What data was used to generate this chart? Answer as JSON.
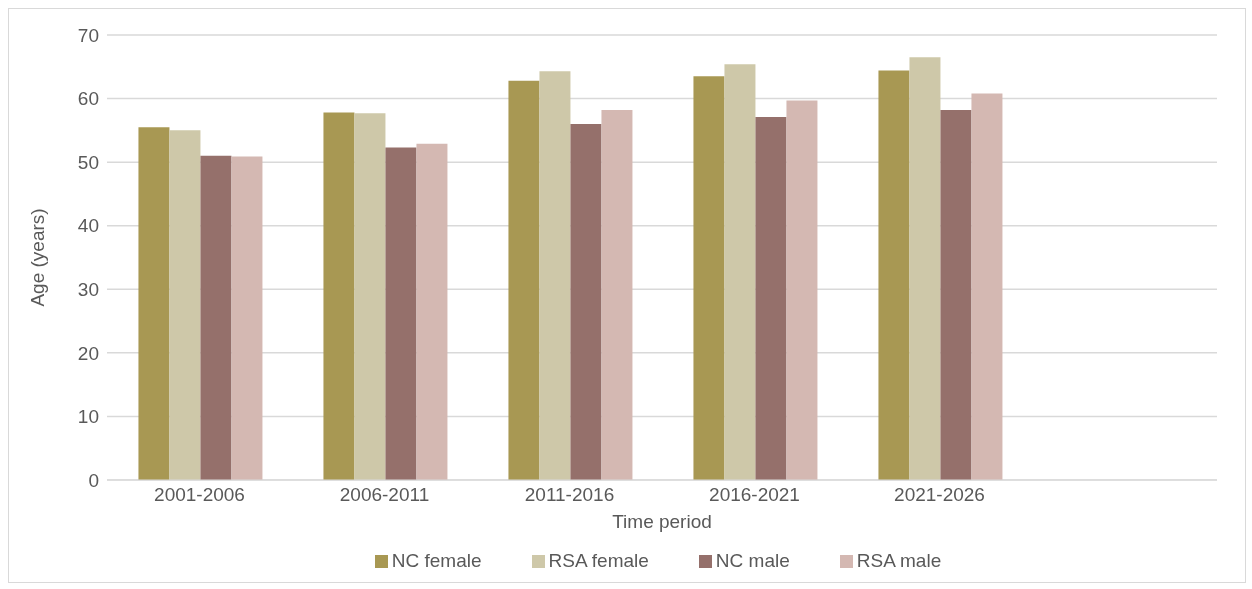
{
  "chart_data": {
    "type": "bar",
    "xlabel": "Time period",
    "ylabel": "Age (years)",
    "categories": [
      "2001-2006",
      "2006-2011",
      "2011-2016",
      "2016-2021",
      "2021-2026",
      null
    ],
    "series": [
      {
        "name": "NC female",
        "color": "#a89853",
        "values": [
          55.5,
          57.8,
          62.8,
          63.5,
          64.4,
          null
        ]
      },
      {
        "name": "RSA female",
        "color": "#cec8a9",
        "values": [
          55.0,
          57.7,
          64.3,
          65.4,
          66.5,
          null
        ]
      },
      {
        "name": "NC male",
        "color": "#95706b",
        "values": [
          51.0,
          52.3,
          56.0,
          57.1,
          58.2,
          null
        ]
      },
      {
        "name": "RSA male",
        "color": "#d4b8b2",
        "values": [
          50.9,
          52.9,
          58.2,
          59.7,
          60.8,
          null
        ]
      }
    ],
    "ylim": [
      0,
      70
    ],
    "yticks": [
      0,
      10,
      20,
      30,
      40,
      50,
      60,
      70
    ],
    "grid": "y",
    "legend": "bottom"
  }
}
